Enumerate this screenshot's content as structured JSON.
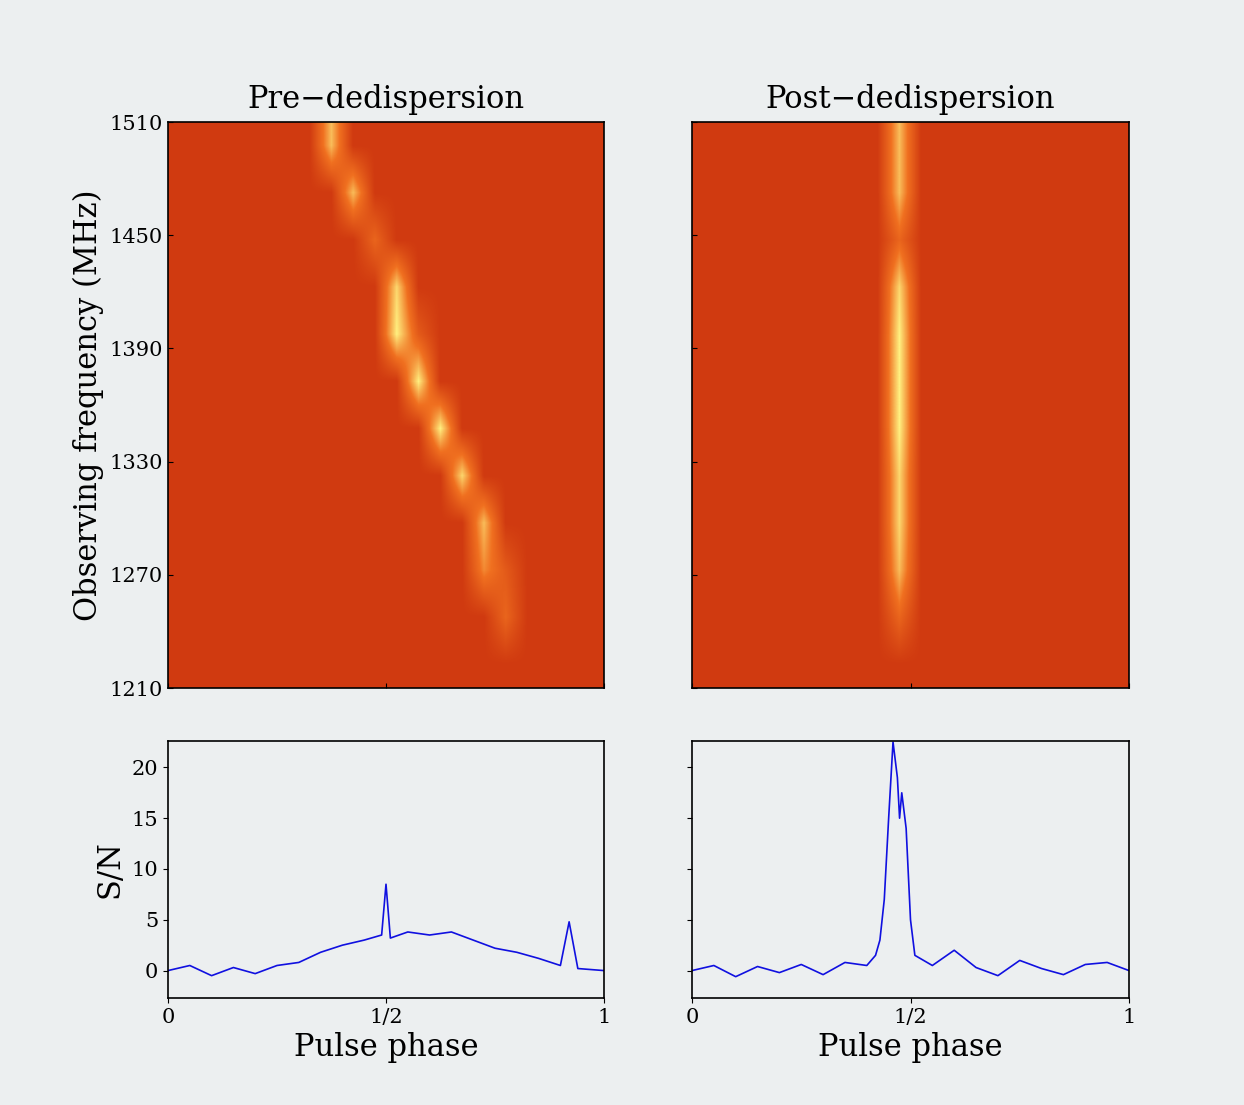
{
  "chart_data": [
    {
      "type": "heatmap",
      "title": "Pre−dedispersion",
      "ylabel": "Observing frequency (MHz)",
      "xlim": [
        0,
        1
      ],
      "ylim": [
        1210,
        1510
      ],
      "xticks": [
        0,
        0.5,
        1
      ],
      "yticks": [
        1210,
        1270,
        1330,
        1390,
        1450,
        1510
      ],
      "tick_labels": "y",
      "cells": [
        [
          0,
          0,
          0,
          0,
          0,
          0,
          0,
          0.8,
          0,
          0,
          0,
          0,
          0,
          0,
          0,
          0,
          0,
          0,
          0,
          0
        ],
        [
          0,
          0,
          0,
          0,
          0,
          0,
          0,
          0,
          0.8,
          0,
          0,
          0,
          0,
          0,
          0,
          0,
          0,
          0,
          0,
          0
        ],
        [
          0,
          0,
          0,
          0,
          0,
          0,
          0,
          0,
          0,
          0.4,
          0,
          0,
          0,
          0,
          0,
          0,
          0,
          0,
          0,
          0
        ],
        [
          0,
          0,
          0,
          0,
          0,
          0,
          0,
          0,
          0,
          0,
          0.9,
          0,
          0,
          0,
          0,
          0,
          0,
          0,
          0,
          0
        ],
        [
          0,
          0,
          0,
          0,
          0,
          0,
          0,
          0,
          0,
          0,
          1,
          0.3,
          0,
          0,
          0,
          0,
          0,
          0,
          0,
          0
        ],
        [
          0,
          0,
          0,
          0,
          0,
          0,
          0,
          0,
          0,
          0,
          0,
          1,
          0,
          0,
          0,
          0,
          0,
          0,
          0,
          0
        ],
        [
          0,
          0,
          0,
          0,
          0,
          0,
          0,
          0,
          0,
          0,
          0,
          0,
          1,
          0,
          0,
          0,
          0,
          0,
          0,
          0
        ],
        [
          0,
          0,
          0,
          0,
          0,
          0,
          0,
          0,
          0,
          0,
          0,
          0,
          0,
          0.9,
          0,
          0,
          0,
          0,
          0,
          0
        ],
        [
          0,
          0,
          0,
          0,
          0,
          0,
          0,
          0,
          0,
          0,
          0,
          0,
          0,
          0,
          0.8,
          0,
          0,
          0,
          0,
          0
        ],
        [
          0,
          0,
          0,
          0,
          0,
          0,
          0,
          0,
          0,
          0,
          0,
          0,
          0,
          0,
          0.6,
          0.3,
          0,
          0,
          0,
          0
        ],
        [
          0,
          0,
          0,
          0,
          0,
          0,
          0,
          0,
          0,
          0,
          0,
          0,
          0,
          0,
          0,
          0.4,
          0,
          0,
          0,
          0
        ],
        [
          0,
          0,
          0,
          0,
          0,
          0,
          0,
          0,
          0,
          0,
          0,
          0,
          0,
          0,
          0,
          0,
          0,
          0,
          0,
          0
        ]
      ]
    },
    {
      "type": "heatmap",
      "title": "Post−dedispersion",
      "xlim": [
        0,
        1
      ],
      "ylim": [
        1210,
        1510
      ],
      "xticks": [
        0,
        0.5,
        1
      ],
      "yticks": [
        1210,
        1270,
        1330,
        1390,
        1450,
        1510
      ],
      "tick_labels": false,
      "cells": [
        [
          0,
          0,
          0,
          0,
          0,
          0,
          0,
          0,
          0,
          0.8,
          0,
          0,
          0,
          0,
          0,
          0,
          0,
          0,
          0,
          0
        ],
        [
          0,
          0,
          0,
          0,
          0,
          0,
          0,
          0,
          0,
          0.8,
          0,
          0,
          0,
          0,
          0,
          0,
          0,
          0,
          0,
          0
        ],
        [
          0,
          0,
          0,
          0,
          0,
          0,
          0,
          0,
          0,
          0.4,
          0,
          0,
          0,
          0,
          0,
          0,
          0,
          0,
          0,
          0
        ],
        [
          0,
          0,
          0,
          0,
          0,
          0,
          0,
          0,
          0,
          0.9,
          0,
          0,
          0,
          0,
          0,
          0,
          0,
          0,
          0,
          0
        ],
        [
          0,
          0,
          0,
          0,
          0,
          0,
          0,
          0,
          0,
          1,
          0,
          0,
          0,
          0,
          0,
          0,
          0,
          0,
          0,
          0
        ],
        [
          0,
          0,
          0,
          0,
          0,
          0,
          0,
          0,
          0,
          1,
          0,
          0,
          0,
          0,
          0,
          0,
          0,
          0,
          0,
          0
        ],
        [
          0,
          0,
          0,
          0,
          0,
          0,
          0,
          0,
          0,
          1,
          0,
          0,
          0,
          0,
          0,
          0,
          0,
          0,
          0,
          0
        ],
        [
          0,
          0,
          0,
          0,
          0,
          0,
          0,
          0,
          0,
          0.9,
          0,
          0,
          0,
          0,
          0,
          0,
          0,
          0,
          0,
          0
        ],
        [
          0,
          0,
          0,
          0,
          0,
          0,
          0,
          0,
          0,
          0.9,
          0,
          0,
          0,
          0,
          0,
          0,
          0,
          0,
          0,
          0
        ],
        [
          0,
          0,
          0,
          0,
          0,
          0,
          0,
          0,
          0,
          0.8,
          0,
          0,
          0,
          0,
          0,
          0,
          0,
          0,
          0,
          0
        ],
        [
          0,
          0,
          0,
          0,
          0,
          0,
          0,
          0,
          0,
          0.4,
          0,
          0,
          0,
          0,
          0,
          0,
          0,
          0,
          0,
          0
        ],
        [
          0,
          0,
          0,
          0,
          0,
          0,
          0,
          0,
          0,
          0,
          0,
          0,
          0,
          0,
          0,
          0,
          0,
          0,
          0,
          0
        ]
      ]
    },
    {
      "type": "line",
      "ylabel": "S/N",
      "xlabel": "Pulse phase",
      "color": "#1010e0",
      "xlim": [
        0,
        1
      ],
      "ylim": [
        -2.7,
        22.6
      ],
      "xticks": [
        0,
        {
          "value": 0.5,
          "label": "1/2"
        },
        1
      ],
      "yticks": [
        0,
        5,
        10,
        15,
        20
      ],
      "tick_labels": true,
      "x": [
        0,
        0.05,
        0.1,
        0.15,
        0.2,
        0.25,
        0.3,
        0.35,
        0.4,
        0.45,
        0.49,
        0.5,
        0.51,
        0.55,
        0.6,
        0.65,
        0.7,
        0.75,
        0.8,
        0.85,
        0.9,
        0.92,
        0.94,
        1.0
      ],
      "values": [
        0,
        0.5,
        -0.5,
        0.3,
        -0.3,
        0.5,
        0.8,
        1.8,
        2.5,
        3.0,
        3.5,
        8.5,
        3.2,
        3.8,
        3.5,
        3.8,
        3.0,
        2.2,
        1.8,
        1.2,
        0.5,
        4.8,
        0.2,
        0
      ]
    },
    {
      "type": "line",
      "xlabel": "Pulse phase",
      "color": "#1010e0",
      "xlim": [
        0,
        1
      ],
      "ylim": [
        -2.7,
        22.6
      ],
      "xticks": [
        0,
        {
          "value": 0.5,
          "label": "1/2"
        },
        1
      ],
      "yticks": [
        0,
        5,
        10,
        15,
        20
      ],
      "tick_labels": "x",
      "x": [
        0,
        0.05,
        0.1,
        0.15,
        0.2,
        0.25,
        0.3,
        0.35,
        0.4,
        0.42,
        0.43,
        0.44,
        0.45,
        0.46,
        0.47,
        0.475,
        0.48,
        0.49,
        0.5,
        0.51,
        0.55,
        0.6,
        0.65,
        0.7,
        0.75,
        0.8,
        0.85,
        0.9,
        0.95,
        1.0
      ],
      "values": [
        0,
        0.5,
        -0.6,
        0.4,
        -0.2,
        0.6,
        -0.4,
        0.8,
        0.5,
        1.5,
        3,
        7,
        15,
        22.5,
        19,
        15,
        17.5,
        14,
        5,
        1.5,
        0.5,
        2,
        0.3,
        -0.5,
        1,
        0.2,
        -0.4,
        0.6,
        0.8,
        0
      ]
    }
  ]
}
